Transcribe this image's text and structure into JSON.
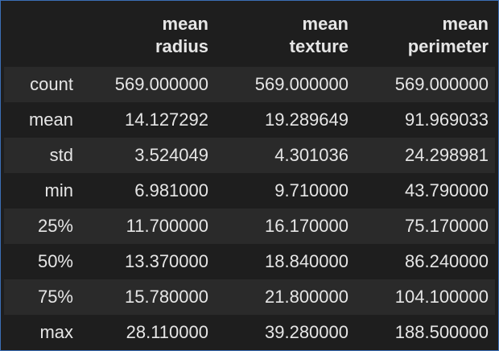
{
  "table": {
    "columns": [
      {
        "line1": "mean",
        "line2": "radius"
      },
      {
        "line1": "mean",
        "line2": "texture"
      },
      {
        "line1": "mean",
        "line2": "perimeter"
      }
    ],
    "rows": [
      {
        "label": "count",
        "values": [
          "569.000000",
          "569.000000",
          "569.000000"
        ]
      },
      {
        "label": "mean",
        "values": [
          "14.127292",
          "19.289649",
          "91.969033"
        ]
      },
      {
        "label": "std",
        "values": [
          "3.524049",
          "4.301036",
          "24.298981"
        ]
      },
      {
        "label": "min",
        "values": [
          "6.981000",
          "9.710000",
          "43.790000"
        ]
      },
      {
        "label": "25%",
        "values": [
          "11.700000",
          "16.170000",
          "75.170000"
        ]
      },
      {
        "label": "50%",
        "values": [
          "13.370000",
          "18.840000",
          "86.240000"
        ]
      },
      {
        "label": "75%",
        "values": [
          "15.780000",
          "21.800000",
          "104.100000"
        ]
      },
      {
        "label": "max",
        "values": [
          "28.110000",
          "39.280000",
          "188.500000"
        ]
      }
    ]
  }
}
